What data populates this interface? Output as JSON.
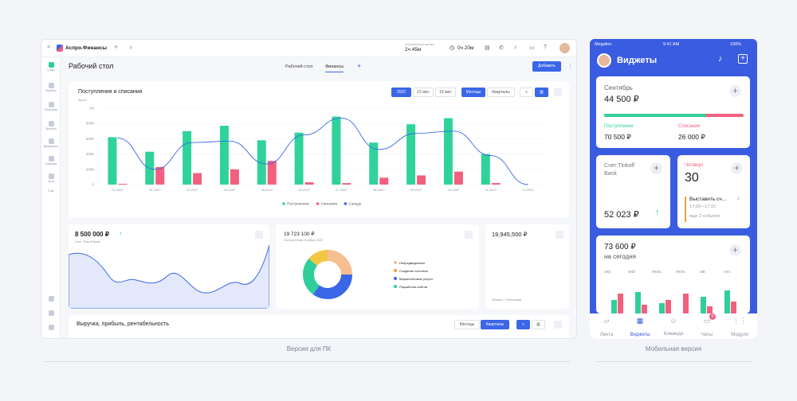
{
  "desktop": {
    "app_name": "Аспро.Финансы",
    "work_time_label": "Затраченное время",
    "work_time_value": "2ч 45м",
    "timer": "0ч 20м",
    "sidebar": [
      "Старт",
      "Клиенты",
      "Операции",
      "Проекты",
      "Документы",
      "Команда",
      "Чаты",
      "Ещё"
    ],
    "page_title": "Рабочий стол",
    "tabs": [
      "Рабочий стол",
      "Финансы"
    ],
    "add_button": "Добавить",
    "chart_card": {
      "title": "Поступления и списания",
      "subtitle": "Артес",
      "period_buttons": [
        "2022",
        "12 мес",
        "15 мес"
      ],
      "group_buttons": [
        "Месяцы",
        "Кварталы"
      ]
    },
    "account_card": {
      "amount": "8 500 000 ₽",
      "label": "Счет Tinkoff Bank"
    },
    "donut_card": {
      "amount": "19 723 100 ₽",
      "label": "Поступления Ноябрь 2022",
      "legend": [
        "Непредвиденные",
        "Создание логотипа",
        "Маркетинговые услуги",
        "Разработка сайтов"
      ],
      "colors": [
        "#f5bf8f",
        "#f29e3b",
        "#3a66e8",
        "#2fcf9b"
      ]
    },
    "third_card": {
      "amount": "19,945,500 ₽",
      "label": "Simplex / Тинькофф"
    },
    "bottom_card": {
      "title": "Выручка, прибыль, рентабельность",
      "buttons": [
        "Месяцы",
        "Кварталы"
      ]
    },
    "caption": "Версия для ПК"
  },
  "chart_data": {
    "type": "bar",
    "categories": [
      "01.2022",
      "02.2022",
      "03.2022",
      "04.2022",
      "05.2022",
      "06.2022",
      "07.2022",
      "08.2022",
      "09.2022",
      "10.2022",
      "11.2022",
      "12.2022"
    ],
    "yticks": [
      "1М",
      "800К",
      "600К",
      "400К",
      "200К",
      "0"
    ],
    "ylim": [
      0,
      1000000
    ],
    "series": [
      {
        "name": "Поступления",
        "color": "#2fd39a",
        "values": [
          620000,
          430000,
          700000,
          770000,
          580000,
          680000,
          890000,
          550000,
          790000,
          870000,
          400000,
          0
        ]
      },
      {
        "name": "Списания",
        "color": "#f2607f",
        "values": [
          10000,
          230000,
          150000,
          200000,
          310000,
          30000,
          20000,
          90000,
          120000,
          170000,
          20000,
          0
        ]
      },
      {
        "name": "Сальдо",
        "color": "#3a66e8",
        "values": [
          610000,
          200000,
          550000,
          570000,
          270000,
          650000,
          870000,
          460000,
          670000,
          700000,
          380000,
          0
        ]
      }
    ]
  },
  "mobile": {
    "status": {
      "carrier": "Megafon",
      "time": "9:41 AM",
      "battery": "100%"
    },
    "title": "Виджеты",
    "month_card": {
      "month": "Сентябрь",
      "amount": "44 500 ₽",
      "in_label": "Поступления",
      "in_value": "70 500 ₽",
      "out_label": "Списания",
      "out_value": "26 000 ₽",
      "progress_fraction": 0.73
    },
    "account_card": {
      "label": "Счет Tinkoff Bank",
      "amount": "52 023 ₽"
    },
    "event_card": {
      "day": "Четверг",
      "date": "30",
      "event": "Выставить сч...",
      "time": "17:00—17:15",
      "more": "еще 2 события"
    },
    "today_card": {
      "amount": "73 600 ₽",
      "label": "на сегодня",
      "months": [
        "апр.",
        "май",
        "июнь",
        "июль",
        "авг.",
        "сен."
      ]
    },
    "nav": [
      "Лента",
      "Виджеты",
      "Команда",
      "Чаты",
      "Модули"
    ],
    "nav_badge": "3",
    "caption": "Мобильная версия"
  }
}
